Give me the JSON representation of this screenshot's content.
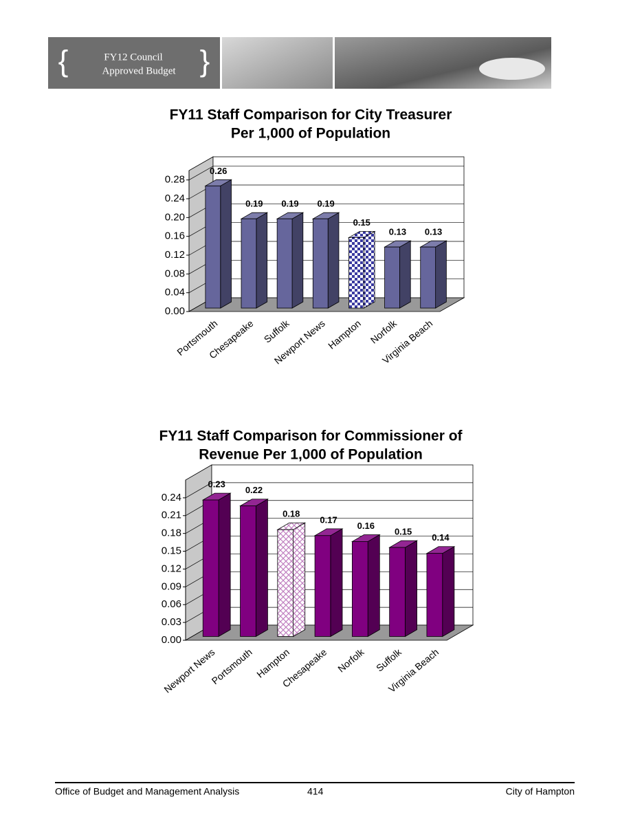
{
  "header": {
    "badge": [
      "FY12 Council",
      "Approved Budget"
    ]
  },
  "chart_data": [
    {
      "type": "bar3d",
      "title": [
        "FY11 Staff Comparison for City Treasurer",
        "Per 1,000 of Population"
      ],
      "categories": [
        "Portsmouth",
        "Chesapeake",
        "Suffolk",
        "Newport News",
        "Hampton",
        "Norfolk",
        "Virginia Beach"
      ],
      "values": [
        0.26,
        0.19,
        0.19,
        0.19,
        0.15,
        0.13,
        0.13
      ],
      "color": "#66669c",
      "pattern_color": "#3a3aa0",
      "pattern": "checker",
      "patterned": [
        false,
        false,
        false,
        false,
        true,
        false,
        false
      ],
      "ylim": [
        0,
        0.3
      ],
      "yticks": [
        {
          "value": 0,
          "label": "0.00"
        },
        0.04,
        0.08,
        0.12,
        0.16,
        {
          "value": 0.2,
          "label": "0.20"
        },
        0.24,
        0.28
      ],
      "grid": true
    },
    {
      "type": "bar3d",
      "title": [
        "FY11 Staff Comparison for Commissioner of",
        "Revenue Per 1,000 of Population"
      ],
      "categories": [
        "Newport News",
        "Portsmouth",
        "Hampton",
        "Chesapeake",
        "Norfolk",
        "Suffolk",
        "Virginia Beach"
      ],
      "values": [
        0.23,
        0.22,
        0.18,
        0.17,
        0.16,
        0.15,
        0.14
      ],
      "color": "#800080",
      "pattern_color": "#c080c0",
      "pattern": "cross",
      "patterned": [
        false,
        false,
        true,
        false,
        false,
        false,
        false
      ],
      "ylim": [
        0,
        0.27
      ],
      "yticks": [
        {
          "value": 0,
          "label": "0.00"
        },
        0.03,
        0.06,
        0.09,
        0.12,
        0.15,
        0.18,
        0.21,
        0.24
      ],
      "grid": true
    }
  ],
  "footer": {
    "left": "Office of Budget and Management Analysis",
    "page": "414",
    "right": "City of Hampton"
  }
}
